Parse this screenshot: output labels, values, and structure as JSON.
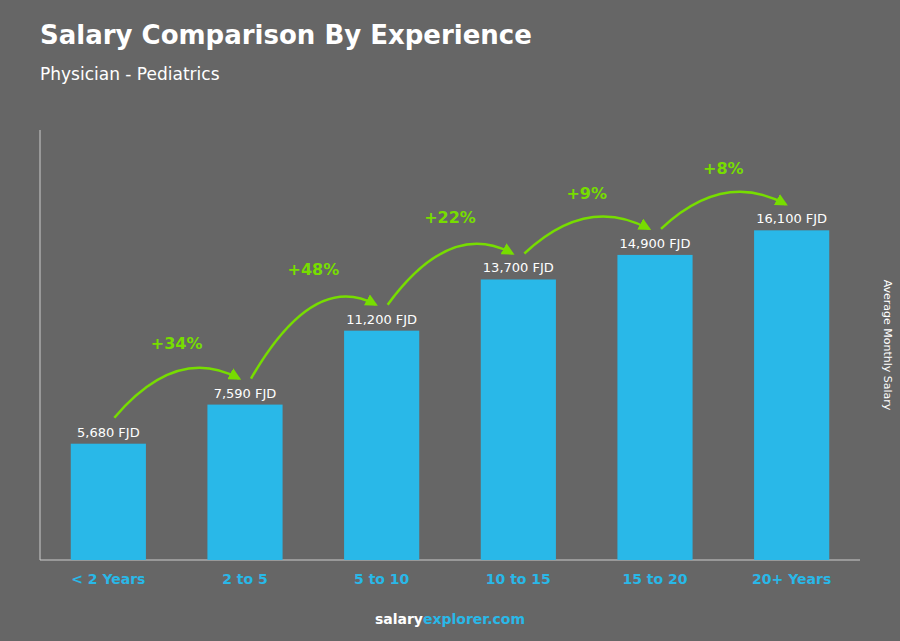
{
  "chart_data": {
    "type": "bar",
    "title": "Salary Comparison By Experience",
    "subtitle": "Physician - Pediatrics",
    "ylabel": "Average Monthly Salary",
    "categories": [
      "< 2 Years",
      "2 to 5",
      "5 to 10",
      "10 to 15",
      "15 to 20",
      "20+ Years"
    ],
    "values": [
      5680,
      7590,
      11200,
      13700,
      14900,
      16100
    ],
    "value_labels": [
      "5,680 FJD",
      "7,590 FJD",
      "11,200 FJD",
      "13,700 FJD",
      "14,900 FJD",
      "16,100 FJD"
    ],
    "data_labels": true,
    "annotations": [
      "+34%",
      "+48%",
      "+22%",
      "+9%",
      "+8%"
    ],
    "annotation_color": "#77dd00",
    "footer": [
      "salary",
      "explorer.com"
    ],
    "color": "#29b8e8",
    "background": "#666666",
    "ylim": [
      0,
      21000
    ],
    "tick_labels": "x",
    "grid": false
  }
}
